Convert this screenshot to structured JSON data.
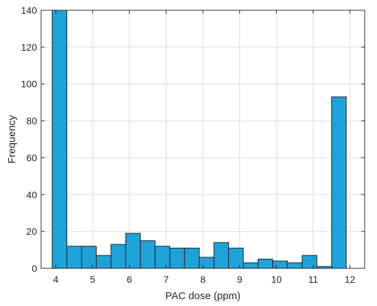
{
  "chart_data": {
    "type": "bar",
    "subtype": "histogram",
    "xlabel": "PAC dose (ppm)",
    "ylabel": "Frequency",
    "xlim": [
      3.6,
      12.4
    ],
    "ylim": [
      0,
      140
    ],
    "xticks": [
      "4",
      "5",
      "6",
      "7",
      "8",
      "9",
      "10",
      "11",
      "12"
    ],
    "yticks": [
      "0",
      "20",
      "40",
      "60",
      "80",
      "100",
      "120",
      "140"
    ],
    "grid": true,
    "bar_color": "#1ea2d8",
    "bins": [
      {
        "x0": 3.9,
        "x1": 4.3,
        "value": 140
      },
      {
        "x0": 4.3,
        "x1": 4.7,
        "value": 12
      },
      {
        "x0": 4.7,
        "x1": 5.1,
        "value": 12
      },
      {
        "x0": 5.1,
        "x1": 5.5,
        "value": 7
      },
      {
        "x0": 5.5,
        "x1": 5.9,
        "value": 13
      },
      {
        "x0": 5.9,
        "x1": 6.3,
        "value": 19
      },
      {
        "x0": 6.3,
        "x1": 6.7,
        "value": 15
      },
      {
        "x0": 6.7,
        "x1": 7.1,
        "value": 12
      },
      {
        "x0": 7.1,
        "x1": 7.5,
        "value": 11
      },
      {
        "x0": 7.5,
        "x1": 7.9,
        "value": 11
      },
      {
        "x0": 7.9,
        "x1": 8.3,
        "value": 6
      },
      {
        "x0": 8.3,
        "x1": 8.7,
        "value": 14
      },
      {
        "x0": 8.7,
        "x1": 9.1,
        "value": 11
      },
      {
        "x0": 9.1,
        "x1": 9.5,
        "value": 3
      },
      {
        "x0": 9.5,
        "x1": 9.9,
        "value": 5
      },
      {
        "x0": 9.9,
        "x1": 10.3,
        "value": 4
      },
      {
        "x0": 10.3,
        "x1": 10.7,
        "value": 3
      },
      {
        "x0": 10.7,
        "x1": 11.1,
        "value": 7
      },
      {
        "x0": 11.1,
        "x1": 11.5,
        "value": 1
      },
      {
        "x0": 11.5,
        "x1": 11.9,
        "value": 93
      }
    ]
  }
}
